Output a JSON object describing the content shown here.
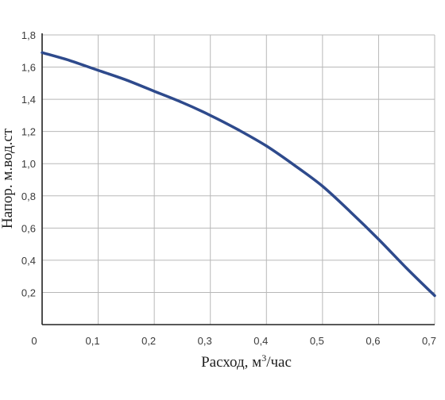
{
  "chart_data": {
    "type": "line",
    "title": "",
    "xlabel_text": "Расход, м",
    "xlabel_sup": "3",
    "xlabel_unit": "/час",
    "ylabel": "Напор. м.вод.ст",
    "xlim": [
      0,
      0.7
    ],
    "ylim": [
      0,
      1.8
    ],
    "x_ticks": [
      "0",
      "0,1",
      "0,2",
      "0,3",
      "0,4",
      "0,5",
      "0,6",
      "0,7"
    ],
    "y_ticks": [
      "0,2",
      "0,4",
      "0,6",
      "0,8",
      "1,0",
      "1,2",
      "1,4",
      "1,6",
      "1,8"
    ],
    "grid": true,
    "line_color": "#2e4a8c",
    "series": [
      {
        "x": [
          0,
          0.05,
          0.1,
          0.15,
          0.2,
          0.25,
          0.3,
          0.35,
          0.4,
          0.45,
          0.5,
          0.55,
          0.6,
          0.65,
          0.7
        ],
        "values": [
          1.69,
          1.64,
          1.58,
          1.52,
          1.45,
          1.38,
          1.3,
          1.21,
          1.11,
          0.99,
          0.86,
          0.7,
          0.53,
          0.35,
          0.18
        ]
      }
    ]
  }
}
